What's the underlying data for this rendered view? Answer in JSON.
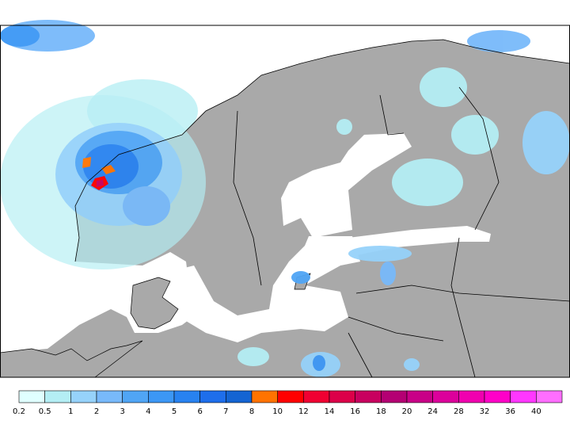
{
  "map": {
    "land_color": "#a9a9a9",
    "sea_color": "#ffffff",
    "border_color": "#000000"
  },
  "legend": {
    "labels": [
      "0.2",
      "0.5",
      "1",
      "2",
      "3",
      "4",
      "5",
      "6",
      "7",
      "8",
      "10",
      "12",
      "14",
      "16",
      "18",
      "20",
      "24",
      "28",
      "32",
      "36",
      "40"
    ],
    "colors": [
      "#e0ffff",
      "#b4eef4",
      "#96d2fa",
      "#78b9fa",
      "#50a5f5",
      "#3c97f5",
      "#2882f0",
      "#1e6eeb",
      "#1464d2",
      "#ff7300",
      "#ff0000",
      "#f00032",
      "#dc0049",
      "#c8005f",
      "#b40073",
      "#c80087",
      "#dc009b",
      "#f000af",
      "#ff00c8",
      "#ff37ff",
      "#ff6eff"
    ]
  }
}
